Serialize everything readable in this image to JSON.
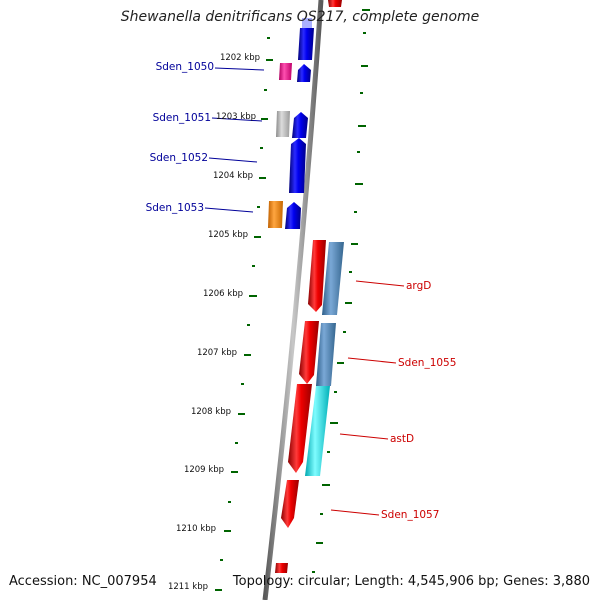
{
  "title": "Shewanella denitrificans OS217, complete genome",
  "accession": "Accession: NC_007954",
  "topology": "Topology: circular; Length: 4,545,906 bp; Genes: 3,880",
  "colors": {
    "cds_forward": "#0000ee",
    "cds_reverse": "#ee0000",
    "gene_magenta": "#ff1493",
    "gene_orange": "#ff8c00",
    "gene_grey": "#b4b4b4",
    "feature_steelblue": "#4682b4",
    "feature_cyan": "#00e5ee",
    "ticks": "#006400",
    "backbone": "#808080",
    "label_blue": "#000099",
    "label_red": "#cc0000"
  },
  "kbp_ticks": [
    "1202 kbp",
    "1203 kbp",
    "1204 kbp",
    "1205 kbp",
    "1206 kbp",
    "1207 kbp",
    "1208 kbp",
    "1209 kbp",
    "1210 kbp",
    "1211 kbp"
  ],
  "gene_labels": [
    {
      "text": "Sden_1050",
      "color": "label_blue"
    },
    {
      "text": "Sden_1051",
      "color": "label_blue"
    },
    {
      "text": "Sden_1052",
      "color": "label_blue"
    },
    {
      "text": "Sden_1053",
      "color": "label_blue"
    },
    {
      "text": "argD",
      "color": "label_red"
    },
    {
      "text": "Sden_1055",
      "color": "label_red"
    },
    {
      "text": "astD",
      "color": "label_red"
    },
    {
      "text": "Sden_1057",
      "color": "label_red"
    }
  ]
}
